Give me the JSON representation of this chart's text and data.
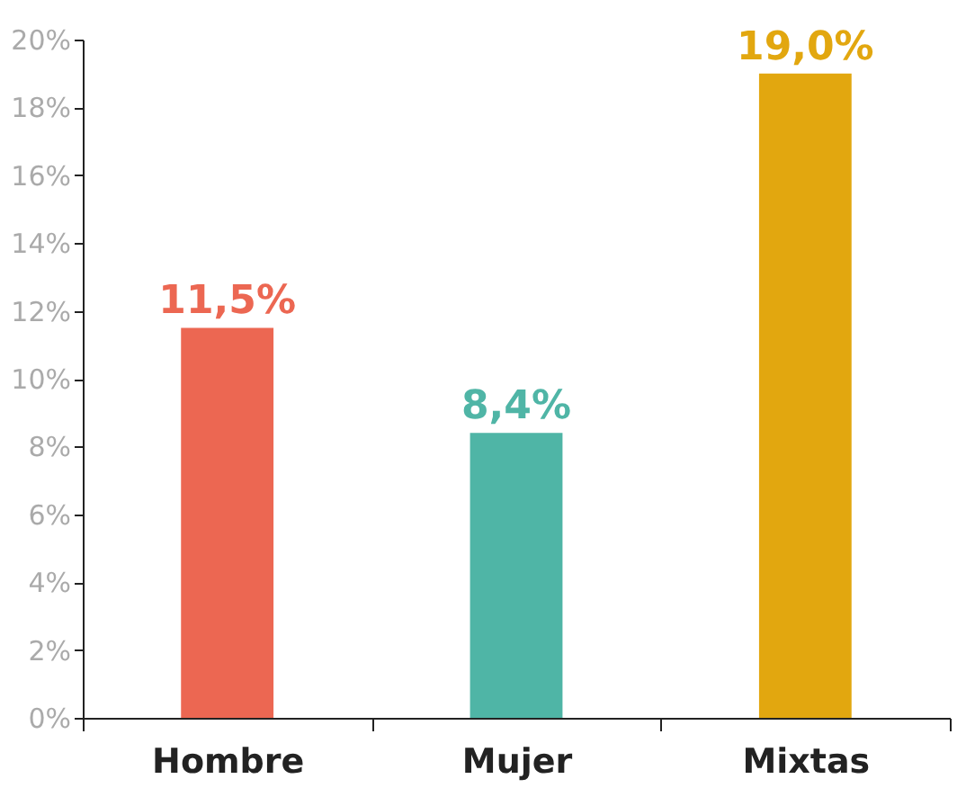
{
  "chart_data": {
    "type": "bar",
    "categories": [
      "Hombre",
      "Mujer",
      "Mixtas"
    ],
    "values": [
      11.5,
      8.4,
      19.0
    ],
    "colors": [
      "#ec6752",
      "#4fb5a6",
      "#e2a70f"
    ],
    "value_labels": [
      "11,5%",
      "8,4%",
      "19,0%"
    ],
    "ylim": [
      0,
      20
    ],
    "yticks": [
      {
        "value": 0,
        "label": "0%"
      },
      {
        "value": 2,
        "label": "2%"
      },
      {
        "value": 4,
        "label": "4%"
      },
      {
        "value": 6,
        "label": "6%"
      },
      {
        "value": 8,
        "label": "8%"
      },
      {
        "value": 10,
        "label": "10%"
      },
      {
        "value": 12,
        "label": "12%"
      },
      {
        "value": 14,
        "label": "14%"
      },
      {
        "value": 16,
        "label": "16%"
      },
      {
        "value": 18,
        "label": "18%"
      },
      {
        "value": 20,
        "label": "20%"
      }
    ],
    "grid": false,
    "legend": false
  }
}
